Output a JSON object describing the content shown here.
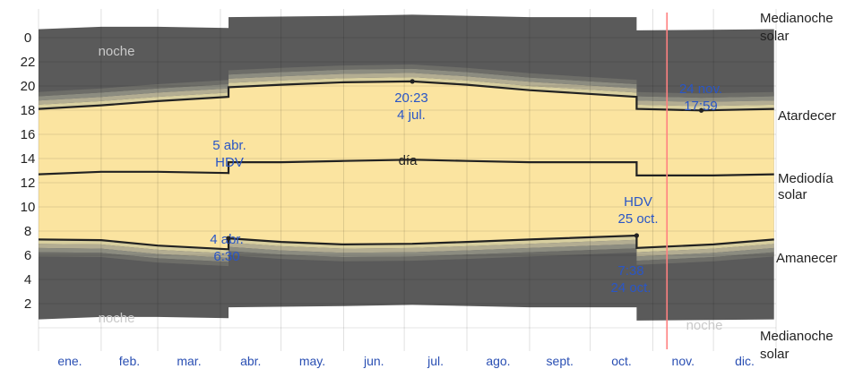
{
  "chart_data": {
    "type": "area",
    "title": "",
    "xlabel": "",
    "ylabel": "",
    "ylim": [
      0,
      24
    ],
    "y_ticks": [
      "0",
      "22",
      "20",
      "18",
      "16",
      "14",
      "12",
      "10",
      "8",
      "6",
      "4",
      "2"
    ],
    "x": [
      "ene.",
      "feb.",
      "mar.",
      "abr.",
      "may.",
      "jun.",
      "jul.",
      "ago.",
      "sept.",
      "oct.",
      "nov.",
      "dic."
    ],
    "series": [
      {
        "key": "sunrise",
        "name": "Amanecer",
        "points": [
          [
            0,
            7.3
          ],
          [
            31,
            7.25
          ],
          [
            59,
            6.8
          ],
          [
            94,
            6.5
          ],
          [
            94,
            7.4
          ],
          [
            120,
            7.1
          ],
          [
            151,
            6.9
          ],
          [
            185,
            6.95
          ],
          [
            212,
            7.1
          ],
          [
            243,
            7.3
          ],
          [
            296,
            7.63
          ],
          [
            296,
            6.6
          ],
          [
            334,
            6.9
          ],
          [
            364,
            7.3
          ]
        ]
      },
      {
        "key": "noon",
        "name": "Mediodía solar",
        "points": [
          [
            0,
            12.7
          ],
          [
            31,
            12.9
          ],
          [
            59,
            12.9
          ],
          [
            94,
            12.8
          ],
          [
            94,
            13.7
          ],
          [
            120,
            13.7
          ],
          [
            151,
            13.8
          ],
          [
            185,
            13.9
          ],
          [
            212,
            13.8
          ],
          [
            243,
            13.7
          ],
          [
            296,
            13.7
          ],
          [
            296,
            12.6
          ],
          [
            334,
            12.6
          ],
          [
            364,
            12.7
          ]
        ]
      },
      {
        "key": "sunset",
        "name": "Atardecer",
        "points": [
          [
            0,
            18.1
          ],
          [
            31,
            18.4
          ],
          [
            59,
            18.75
          ],
          [
            94,
            19.1
          ],
          [
            94,
            19.9
          ],
          [
            120,
            20.1
          ],
          [
            151,
            20.3
          ],
          [
            185,
            20.38
          ],
          [
            212,
            20.1
          ],
          [
            243,
            19.65
          ],
          [
            296,
            19.1
          ],
          [
            296,
            18.1
          ],
          [
            328,
            17.98
          ],
          [
            364,
            18.1
          ]
        ]
      },
      {
        "key": "midnight",
        "name": "Medianoche solar",
        "points": [
          [
            0,
            24.7
          ],
          [
            31,
            24.9
          ],
          [
            59,
            24.9
          ],
          [
            94,
            24.8
          ],
          [
            94,
            25.7
          ],
          [
            151,
            25.8
          ],
          [
            185,
            25.9
          ],
          [
            243,
            25.7
          ],
          [
            296,
            25.7
          ],
          [
            296,
            24.6
          ],
          [
            364,
            24.7
          ]
        ]
      }
    ],
    "right_labels": {
      "midnight_top": [
        "Medianoche",
        "solar"
      ],
      "sunset": "Atardecer",
      "noon": [
        "Mediodía",
        "solar"
      ],
      "sunrise": "Amanecer",
      "midnight_bottom": [
        "Medianoche",
        "solar"
      ]
    },
    "annotations": {
      "noche_top_left": "noche",
      "noche_bottom_left": "noche",
      "noche_bottom_right": "noche",
      "dia": "día",
      "dst_start_date": "5 abr.",
      "dst_start_label": "HDV",
      "dst_end_label": "HDV",
      "dst_end_date": "25 oct.",
      "latest_sunset_time": "20:23",
      "latest_sunset_date": "4 jul.",
      "earliest_sunset_date": "24 nov.",
      "earliest_sunset_time": "17:59",
      "sunrise_apr_date": "4 abr.",
      "sunrise_apr_time": "6:30",
      "sunrise_oct_time": "7:38",
      "sunrise_oct_date": "24 oct."
    },
    "today_marker_day": 311,
    "colors": {
      "night": "#5a5a5a",
      "day": "#fbe4a0",
      "twilight1": "#6d6d68",
      "twilight2": "#8c8c80",
      "twilight3": "#b3ad92",
      "twilight4": "#d8cf9f",
      "today": "#ff8080",
      "line": "#222222",
      "label_blue": "#2a56c6"
    },
    "grid": true
  }
}
